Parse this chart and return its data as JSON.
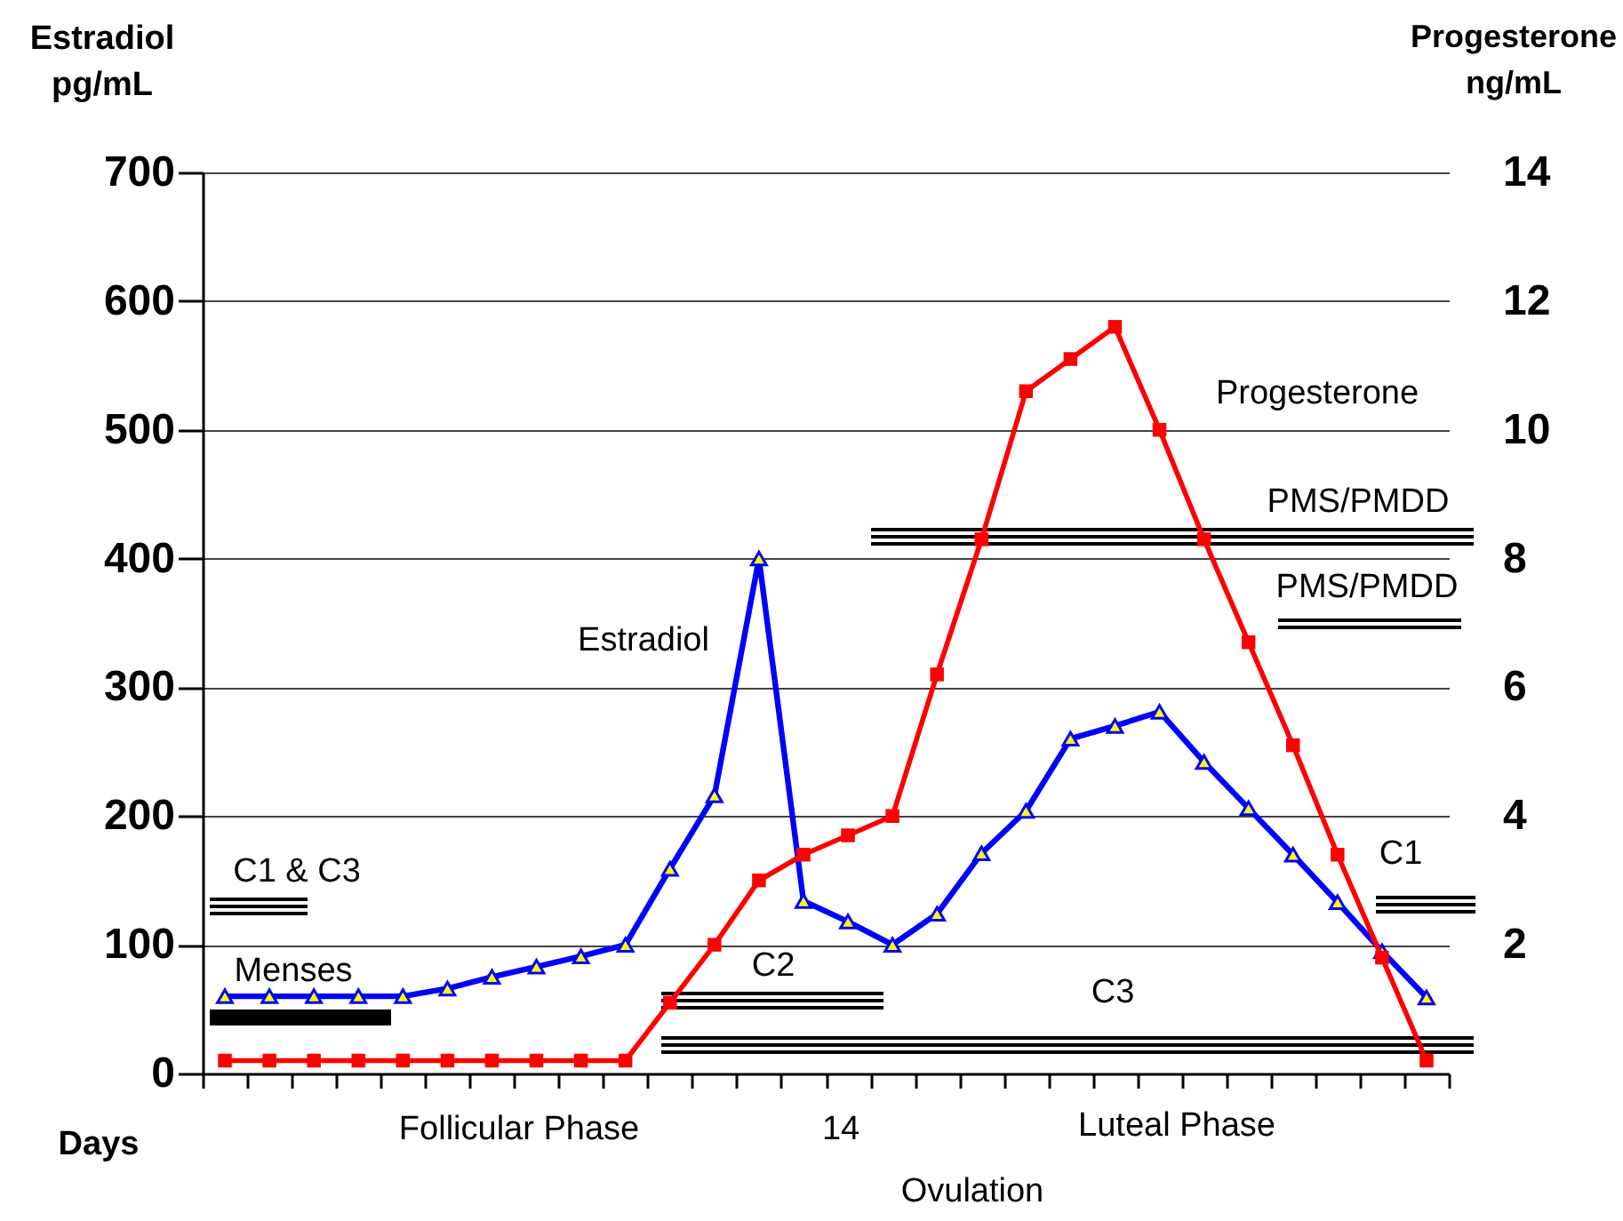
{
  "chart_data": {
    "type": "line",
    "xlabel": "Days",
    "ylabel": "Estradiol\npg/mL",
    "y2label": "Progesterone\nng/mL",
    "categories": [
      null,
      null,
      null,
      null,
      null,
      null,
      null,
      null,
      null,
      null,
      null,
      null,
      null,
      null,
      null,
      null,
      null,
      null,
      null,
      null,
      null,
      null,
      null,
      null,
      null,
      null,
      null,
      null
    ],
    "ylim": [
      0,
      700
    ],
    "yticks": [
      0,
      100,
      200,
      300,
      400,
      500,
      600,
      700
    ],
    "y2lim": [
      0,
      14
    ],
    "y2ticks": [
      2,
      4,
      6,
      8,
      10,
      12,
      14
    ],
    "series": [
      {
        "name": "Estradiol",
        "color": "#0000ff",
        "marker": "triangle",
        "values": [
          60,
          60,
          60,
          60,
          60,
          66,
          75,
          83,
          91,
          100,
          159,
          216,
          400,
          134,
          118,
          100,
          124,
          171,
          204,
          260,
          270,
          281,
          242,
          206,
          170,
          133,
          95,
          59
        ]
      },
      {
        "name": "Progesterone",
        "color": "#ff0000",
        "marker": "square",
        "axis": "y2",
        "values": [
          0.2,
          0.2,
          0.2,
          0.2,
          0.2,
          0.2,
          0.2,
          0.2,
          0.2,
          0.2,
          1.1,
          2.0,
          3.0,
          3.4,
          3.7,
          4.0,
          6.2,
          8.3,
          10.6,
          11.1,
          11.6,
          10.0,
          8.3,
          6.7,
          5.1,
          3.4,
          1.8,
          0.2
        ]
      }
    ],
    "annotations": [
      "C1 & C3",
      "Menses",
      "C2",
      "C3",
      "PMS/PMDD",
      "PMS/PMDD",
      "C1",
      "Follicular Phase",
      "14",
      "Luteal Phase",
      "Ovulation"
    ],
    "grid": "y",
    "tick_labels": "y",
    "line_style": "solid"
  }
}
